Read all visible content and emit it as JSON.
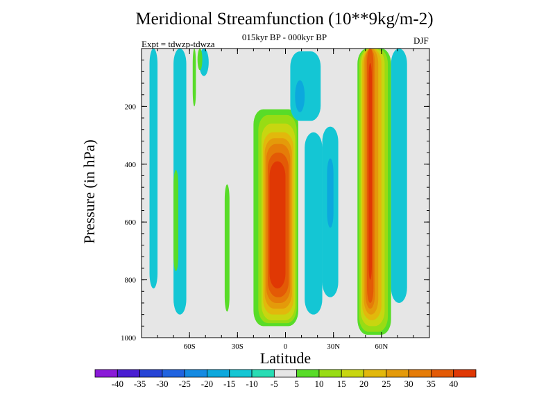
{
  "chart_data": {
    "type": "heatmap",
    "title": "Meridional Streamfunction (10**9kg/m-2)",
    "subtitle": "015kyr BP - 000kyr BP",
    "left_string": "Expt = tdwzp-tdwza",
    "right_string": "DJF",
    "xlabel": "Latitude",
    "ylabel": "Pressure (in hPa)",
    "xlim": [
      -90,
      90
    ],
    "ylim": [
      1000,
      0
    ],
    "x_ticks": [
      -60,
      -30,
      0,
      30,
      60
    ],
    "x_tick_labels": [
      "60S",
      "30S",
      "0",
      "30N",
      "60N"
    ],
    "y_ticks": [
      200,
      400,
      600,
      800,
      1000
    ],
    "y_tick_labels": [
      "200",
      "400",
      "600",
      "800",
      "1000"
    ],
    "background_color": "#e6e6e6",
    "colorbar": {
      "labels": [
        "-40",
        "-35",
        "-30",
        "-25",
        "-20",
        "-15",
        "-10",
        "-5",
        "5",
        "10",
        "15",
        "20",
        "25",
        "30",
        "35",
        "40"
      ],
      "colors": [
        "#8a1ad8",
        "#4a1ed2",
        "#2744d6",
        "#2063e0",
        "#148ae2",
        "#0ca8dd",
        "#14c6d4",
        "#28dcb4",
        "#e6e6e6",
        "#58dc28",
        "#98dc14",
        "#c8d610",
        "#e2b80c",
        "#e49a0a",
        "#e57c08",
        "#e35a06",
        "#e03804"
      ]
    },
    "features": [
      {
        "kind": "band",
        "level": -10,
        "lat_start": -85,
        "lat_end": -80,
        "p_top": 0,
        "p_bottom": 830
      },
      {
        "kind": "band",
        "level": -10,
        "lat_start": -70,
        "lat_end": -62,
        "p_top": 0,
        "p_bottom": 920
      },
      {
        "kind": "band",
        "level": 5,
        "lat_start": -70,
        "lat_end": -67,
        "p_top": 420,
        "p_bottom": 770
      },
      {
        "kind": "band",
        "level": 5,
        "lat_start": -58,
        "lat_end": -56,
        "p_top": 0,
        "p_bottom": 200
      },
      {
        "kind": "band",
        "level": -10,
        "lat_start": -54,
        "lat_end": -48,
        "p_top": 0,
        "p_bottom": 95
      },
      {
        "kind": "band",
        "level": 5,
        "lat_start": -55,
        "lat_end": -52,
        "p_top": 0,
        "p_bottom": 75
      },
      {
        "kind": "band",
        "level": 5,
        "lat_start": -38,
        "lat_end": -35,
        "p_top": 470,
        "p_bottom": 910
      },
      {
        "kind": "band",
        "level": 5,
        "lat_start": -20,
        "lat_end": 8,
        "p_top": 210,
        "p_bottom": 960
      },
      {
        "kind": "band",
        "level": 10,
        "lat_start": -17,
        "lat_end": 7,
        "p_top": 230,
        "p_bottom": 950
      },
      {
        "kind": "band",
        "level": 15,
        "lat_start": -15,
        "lat_end": 6,
        "p_top": 260,
        "p_bottom": 940
      },
      {
        "kind": "band",
        "level": 20,
        "lat_start": -14,
        "lat_end": 5,
        "p_top": 290,
        "p_bottom": 920
      },
      {
        "kind": "band",
        "level": 25,
        "lat_start": -13,
        "lat_end": 4,
        "p_top": 310,
        "p_bottom": 900
      },
      {
        "kind": "band",
        "level": 30,
        "lat_start": -12,
        "lat_end": 3,
        "p_top": 330,
        "p_bottom": 880
      },
      {
        "kind": "band",
        "level": 35,
        "lat_start": -11,
        "lat_end": 2,
        "p_top": 360,
        "p_bottom": 860
      },
      {
        "kind": "band",
        "level": 40,
        "lat_start": -10,
        "lat_end": 0,
        "p_top": 390,
        "p_bottom": 830
      },
      {
        "kind": "band",
        "level": -10,
        "lat_start": 3,
        "lat_end": 22,
        "p_top": 10,
        "p_bottom": 250
      },
      {
        "kind": "band",
        "level": -15,
        "lat_start": 6,
        "lat_end": 12,
        "p_top": 110,
        "p_bottom": 220
      },
      {
        "kind": "band",
        "level": -10,
        "lat_start": 12,
        "lat_end": 23,
        "p_top": 290,
        "p_bottom": 920
      },
      {
        "kind": "band",
        "level": -10,
        "lat_start": 23,
        "lat_end": 33,
        "p_top": 270,
        "p_bottom": 860
      },
      {
        "kind": "band",
        "level": -15,
        "lat_start": 26,
        "lat_end": 30,
        "p_top": 380,
        "p_bottom": 620
      },
      {
        "kind": "band",
        "level": 5,
        "lat_start": 45,
        "lat_end": 66,
        "p_top": 0,
        "p_bottom": 990
      },
      {
        "kind": "band",
        "level": 10,
        "lat_start": 46,
        "lat_end": 64,
        "p_top": 0,
        "p_bottom": 980
      },
      {
        "kind": "band",
        "level": 15,
        "lat_start": 47,
        "lat_end": 62,
        "p_top": 0,
        "p_bottom": 960
      },
      {
        "kind": "band",
        "level": 20,
        "lat_start": 48,
        "lat_end": 60,
        "p_top": 0,
        "p_bottom": 940
      },
      {
        "kind": "band",
        "level": 25,
        "lat_start": 49,
        "lat_end": 58,
        "p_top": 0,
        "p_bottom": 920
      },
      {
        "kind": "band",
        "level": 30,
        "lat_start": 50,
        "lat_end": 56,
        "p_top": 0,
        "p_bottom": 900
      },
      {
        "kind": "band",
        "level": 35,
        "lat_start": 51,
        "lat_end": 55,
        "p_top": 0,
        "p_bottom": 880
      },
      {
        "kind": "band",
        "level": 40,
        "lat_start": 52,
        "lat_end": 54,
        "p_top": 50,
        "p_bottom": 800
      },
      {
        "kind": "band",
        "level": -10,
        "lat_start": 66,
        "lat_end": 76,
        "p_top": 0,
        "p_bottom": 880
      }
    ]
  }
}
